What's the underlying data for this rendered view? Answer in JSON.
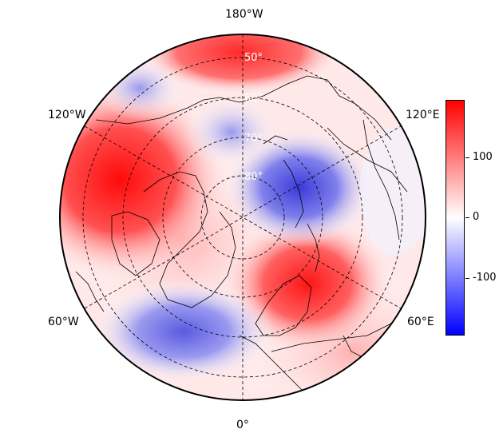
{
  "longitude_labels": {
    "top": "180°W",
    "bottom": "0°",
    "left_upper": "120°W",
    "left_lower": "60°W",
    "right_upper": "120°E",
    "right_lower": "60°E"
  },
  "latitude_labels": [
    "50°",
    "60°",
    "70°",
    "80°"
  ],
  "colorbar": {
    "ticks": [
      "100",
      "0",
      "-100"
    ],
    "range": [
      -200,
      200
    ],
    "colors": {
      "high": "#ff0000",
      "mid": "#ffffff",
      "low": "#0000ff"
    }
  },
  "projection": "north-polar-stereographic",
  "field_description_colors": {
    "positive": "#ff0000",
    "negative": "#0000ff"
  }
}
